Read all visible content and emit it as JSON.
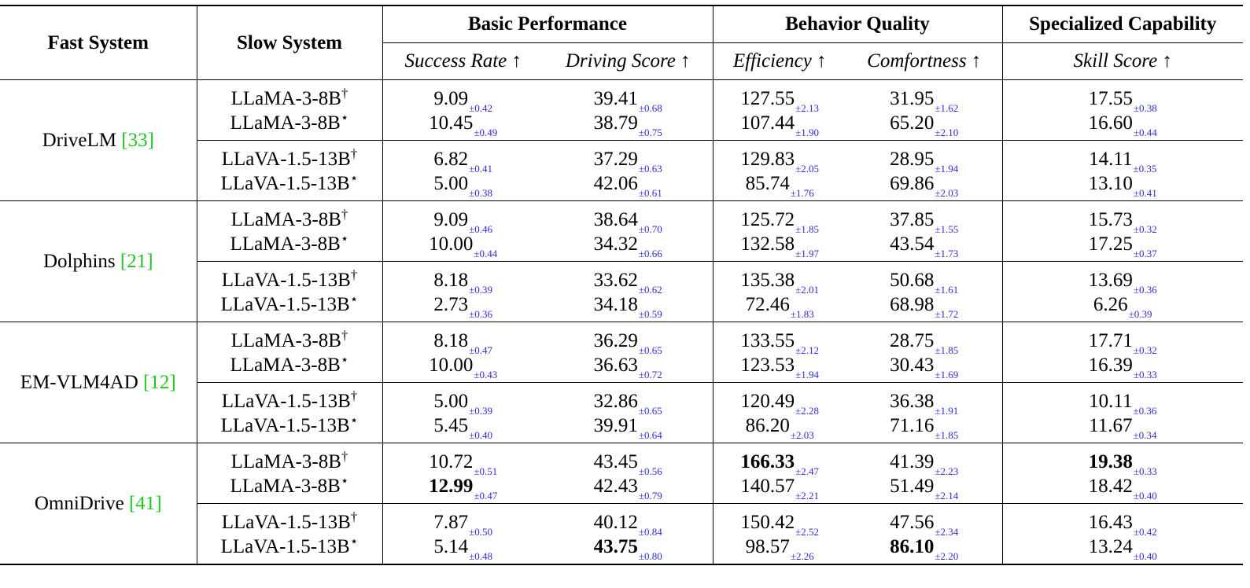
{
  "headers": {
    "fast_system": "Fast System",
    "slow_system": "Slow System",
    "groups": [
      "Basic Performance",
      "Behavior Quality",
      "Specialized Capability"
    ],
    "metrics": [
      "Success Rate ↑",
      "Driving Score ↑",
      "Efficiency ↑",
      "Comfortness ↑",
      "Skill Score ↑"
    ]
  },
  "rows": [
    {
      "fast": "DriveLM",
      "cite": "[33]",
      "groups": [
        [
          {
            "slow": "LLaMA-3-8B",
            "mark": "†",
            "vals": [
              [
                "9.09",
                "±0.42"
              ],
              [
                "39.41",
                "±0.68"
              ],
              [
                "127.55",
                "±2.13"
              ],
              [
                "31.95",
                "±1.62"
              ],
              [
                "17.55",
                "±0.38"
              ]
            ]
          },
          {
            "slow": "LLaMA-3-8B",
            "mark": "⋆",
            "vals": [
              [
                "10.45",
                "±0.49"
              ],
              [
                "38.79",
                "±0.75"
              ],
              [
                "107.44",
                "±1.90"
              ],
              [
                "65.20",
                "±2.10"
              ],
              [
                "16.60",
                "±0.44"
              ]
            ]
          }
        ],
        [
          {
            "slow": "LLaVA-1.5-13B",
            "mark": "†",
            "vals": [
              [
                "6.82",
                "±0.41"
              ],
              [
                "37.29",
                "±0.63"
              ],
              [
                "129.83",
                "±2.05"
              ],
              [
                "28.95",
                "±1.94"
              ],
              [
                "14.11",
                "±0.35"
              ]
            ]
          },
          {
            "slow": "LLaVA-1.5-13B",
            "mark": "⋆",
            "vals": [
              [
                "5.00",
                "±0.38"
              ],
              [
                "42.06",
                "±0.61"
              ],
              [
                "85.74",
                "±1.76"
              ],
              [
                "69.86",
                "±2.03"
              ],
              [
                "13.10",
                "±0.41"
              ]
            ]
          }
        ]
      ]
    },
    {
      "fast": "Dolphins",
      "cite": "[21]",
      "groups": [
        [
          {
            "slow": "LLaMA-3-8B",
            "mark": "†",
            "vals": [
              [
                "9.09",
                "±0.46"
              ],
              [
                "38.64",
                "±0.70"
              ],
              [
                "125.72",
                "±1.85"
              ],
              [
                "37.85",
                "±1.55"
              ],
              [
                "15.73",
                "±0.32"
              ]
            ]
          },
          {
            "slow": "LLaMA-3-8B",
            "mark": "⋆",
            "vals": [
              [
                "10.00",
                "±0.44"
              ],
              [
                "34.32",
                "±0.66"
              ],
              [
                "132.58",
                "±1.97"
              ],
              [
                "43.54",
                "±1.73"
              ],
              [
                "17.25",
                "±0.37"
              ]
            ]
          }
        ],
        [
          {
            "slow": "LLaVA-1.5-13B",
            "mark": "†",
            "vals": [
              [
                "8.18",
                "±0.39"
              ],
              [
                "33.62",
                "±0.62"
              ],
              [
                "135.38",
                "±2.01"
              ],
              [
                "50.68",
                "±1.61"
              ],
              [
                "13.69",
                "±0.36"
              ]
            ]
          },
          {
            "slow": "LLaVA-1.5-13B",
            "mark": "⋆",
            "vals": [
              [
                "2.73",
                "±0.36"
              ],
              [
                "34.18",
                "±0.59"
              ],
              [
                "72.46",
                "±1.83"
              ],
              [
                "68.98",
                "±1.72"
              ],
              [
                "6.26",
                "±0.39"
              ]
            ]
          }
        ]
      ]
    },
    {
      "fast": "EM-VLM4AD",
      "cite": "[12]",
      "groups": [
        [
          {
            "slow": "LLaMA-3-8B",
            "mark": "†",
            "vals": [
              [
                "8.18",
                "±0.47"
              ],
              [
                "36.29",
                "±0.65"
              ],
              [
                "133.55",
                "±2.12"
              ],
              [
                "28.75",
                "±1.85"
              ],
              [
                "17.71",
                "±0.32"
              ]
            ]
          },
          {
            "slow": "LLaMA-3-8B",
            "mark": "⋆",
            "vals": [
              [
                "10.00",
                "±0.43"
              ],
              [
                "36.63",
                "±0.72"
              ],
              [
                "123.53",
                "±1.94"
              ],
              [
                "30.43",
                "±1.69"
              ],
              [
                "16.39",
                "±0.33"
              ]
            ]
          }
        ],
        [
          {
            "slow": "LLaVA-1.5-13B",
            "mark": "†",
            "vals": [
              [
                "5.00",
                "±0.39"
              ],
              [
                "32.86",
                "±0.65"
              ],
              [
                "120.49",
                "±2.28"
              ],
              [
                "36.38",
                "±1.91"
              ],
              [
                "10.11",
                "±0.36"
              ]
            ]
          },
          {
            "slow": "LLaVA-1.5-13B",
            "mark": "⋆",
            "vals": [
              [
                "5.45",
                "±0.40"
              ],
              [
                "39.91",
                "±0.64"
              ],
              [
                "86.20",
                "±2.03"
              ],
              [
                "71.16",
                "±1.85"
              ],
              [
                "11.67",
                "±0.34"
              ]
            ]
          }
        ]
      ]
    },
    {
      "fast": "OmniDrive",
      "cite": "[41]",
      "groups": [
        [
          {
            "slow": "LLaMA-3-8B",
            "mark": "†",
            "vals": [
              [
                "10.72",
                "±0.51"
              ],
              [
                "43.45",
                "±0.56"
              ],
              [
                "166.33",
                "±2.47",
                true
              ],
              [
                "41.39",
                "±2.23"
              ],
              [
                "19.38",
                "±0.33",
                true
              ]
            ]
          },
          {
            "slow": "LLaMA-3-8B",
            "mark": "⋆",
            "vals": [
              [
                "12.99",
                "±0.47",
                true
              ],
              [
                "42.43",
                "±0.79"
              ],
              [
                "140.57",
                "±2.21"
              ],
              [
                "51.49",
                "±2.14"
              ],
              [
                "18.42",
                "±0.40"
              ]
            ]
          }
        ],
        [
          {
            "slow": "LLaVA-1.5-13B",
            "mark": "†",
            "vals": [
              [
                "7.87",
                "±0.50"
              ],
              [
                "40.12",
                "±0.84"
              ],
              [
                "150.42",
                "±2.52"
              ],
              [
                "47.56",
                "±2.34"
              ],
              [
                "16.43",
                "±0.42"
              ]
            ]
          },
          {
            "slow": "LLaVA-1.5-13B",
            "mark": "⋆",
            "vals": [
              [
                "5.14",
                "±0.48"
              ],
              [
                "43.75",
                "±0.80",
                true
              ],
              [
                "98.57",
                "±2.26"
              ],
              [
                "86.10",
                "±2.20",
                true
              ],
              [
                "13.24",
                "±0.40"
              ]
            ]
          }
        ]
      ]
    }
  ]
}
